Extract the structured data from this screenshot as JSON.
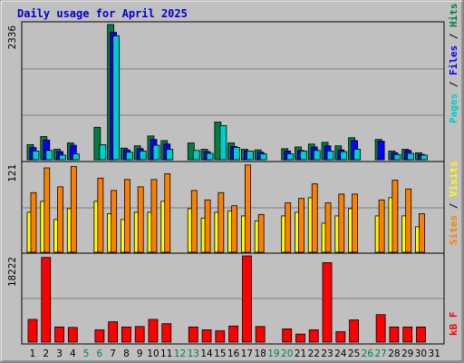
{
  "title": "Daily usage for April 2025",
  "colors": {
    "frame_bg": "#c0c0c0",
    "title": "#0000cc",
    "pages": "#00cccc",
    "files": "#0000ff",
    "hits": "#008040",
    "sites": "#ff8000",
    "visits": "#ffff00",
    "kbytes": "#ff0000",
    "weekend_day": "#008040"
  },
  "panels": {
    "top": {
      "max_label": "2336",
      "legend": [
        {
          "text": "Pages",
          "color": "#00cccc"
        },
        {
          "text": " / ",
          "color": "#000000"
        },
        {
          "text": "Files",
          "color": "#0000ff"
        },
        {
          "text": " / ",
          "color": "#000000"
        },
        {
          "text": "Hits",
          "color": "#008040"
        }
      ]
    },
    "middle": {
      "max_label": "121",
      "legend": [
        {
          "text": "Sites",
          "color": "#ff8000"
        },
        {
          "text": " / ",
          "color": "#000000"
        },
        {
          "text": "Visits",
          "color": "#ffff00"
        }
      ]
    },
    "bottom": {
      "max_label": "18222",
      "legend": [
        {
          "text": "kB F",
          "color": "#ff0000"
        }
      ]
    }
  },
  "chart_data": {
    "type": "bar",
    "title": "Daily usage for April 2025",
    "categories": [
      "1",
      "2",
      "3",
      "4",
      "5",
      "6",
      "7",
      "8",
      "9",
      "10",
      "11",
      "12",
      "13",
      "14",
      "15",
      "16",
      "17",
      "18",
      "19",
      "20",
      "21",
      "22",
      "23",
      "24",
      "25",
      "26",
      "27",
      "28",
      "29",
      "30",
      "31"
    ],
    "weekend_days": [
      "5",
      "6",
      "12",
      "13",
      "19",
      "20",
      "26",
      "27"
    ],
    "top": {
      "ylim": [
        0,
        2336
      ],
      "series": [
        {
          "name": "Hits",
          "values": [
            260,
            400,
            180,
            290,
            0,
            560,
            2336,
            200,
            240,
            410,
            330,
            0,
            290,
            180,
            650,
            290,
            180,
            170,
            0,
            190,
            220,
            270,
            300,
            240,
            380,
            0,
            350,
            150,
            180,
            120,
            0
          ]
        },
        {
          "name": "Files",
          "values": [
            210,
            340,
            140,
            250,
            0,
            0,
            2200,
            170,
            190,
            350,
            270,
            0,
            0,
            140,
            0,
            230,
            150,
            130,
            0,
            150,
            160,
            220,
            240,
            170,
            330,
            0,
            320,
            120,
            160,
            90,
            0
          ]
        },
        {
          "name": "Pages",
          "values": [
            150,
            160,
            80,
            100,
            0,
            260,
            2140,
            130,
            150,
            250,
            180,
            0,
            160,
            110,
            590,
            210,
            150,
            100,
            0,
            100,
            150,
            160,
            150,
            140,
            180,
            0,
            0,
            90,
            110,
            80,
            0
          ]
        }
      ]
    },
    "middle": {
      "ylim": [
        0,
        121
      ],
      "series": [
        {
          "name": "Visits",
          "values": [
            55,
            70,
            45,
            60,
            0,
            70,
            53,
            45,
            55,
            55,
            70,
            0,
            60,
            47,
            55,
            57,
            50,
            43,
            0,
            50,
            55,
            75,
            40,
            50,
            60,
            0,
            50,
            75,
            50,
            35,
            0
          ]
        },
        {
          "name": "Sites",
          "values": [
            82,
            116,
            90,
            118,
            0,
            102,
            85,
            100,
            90,
            100,
            108,
            0,
            85,
            72,
            82,
            64,
            120,
            52,
            0,
            68,
            74,
            94,
            68,
            80,
            80,
            0,
            72,
            99,
            87,
            53,
            0
          ]
        }
      ]
    },
    "bottom": {
      "ylim": [
        0,
        18222
      ],
      "series": [
        {
          "name": "kB F",
          "values": [
            4800,
            17900,
            3200,
            3100,
            0,
            2600,
            4300,
            3200,
            3300,
            4800,
            3900,
            0,
            3200,
            2600,
            2400,
            3400,
            18222,
            3300,
            0,
            2800,
            1700,
            2600,
            16800,
            2200,
            4700,
            0,
            5800,
            3200,
            3200,
            3200,
            0
          ]
        }
      ]
    }
  }
}
